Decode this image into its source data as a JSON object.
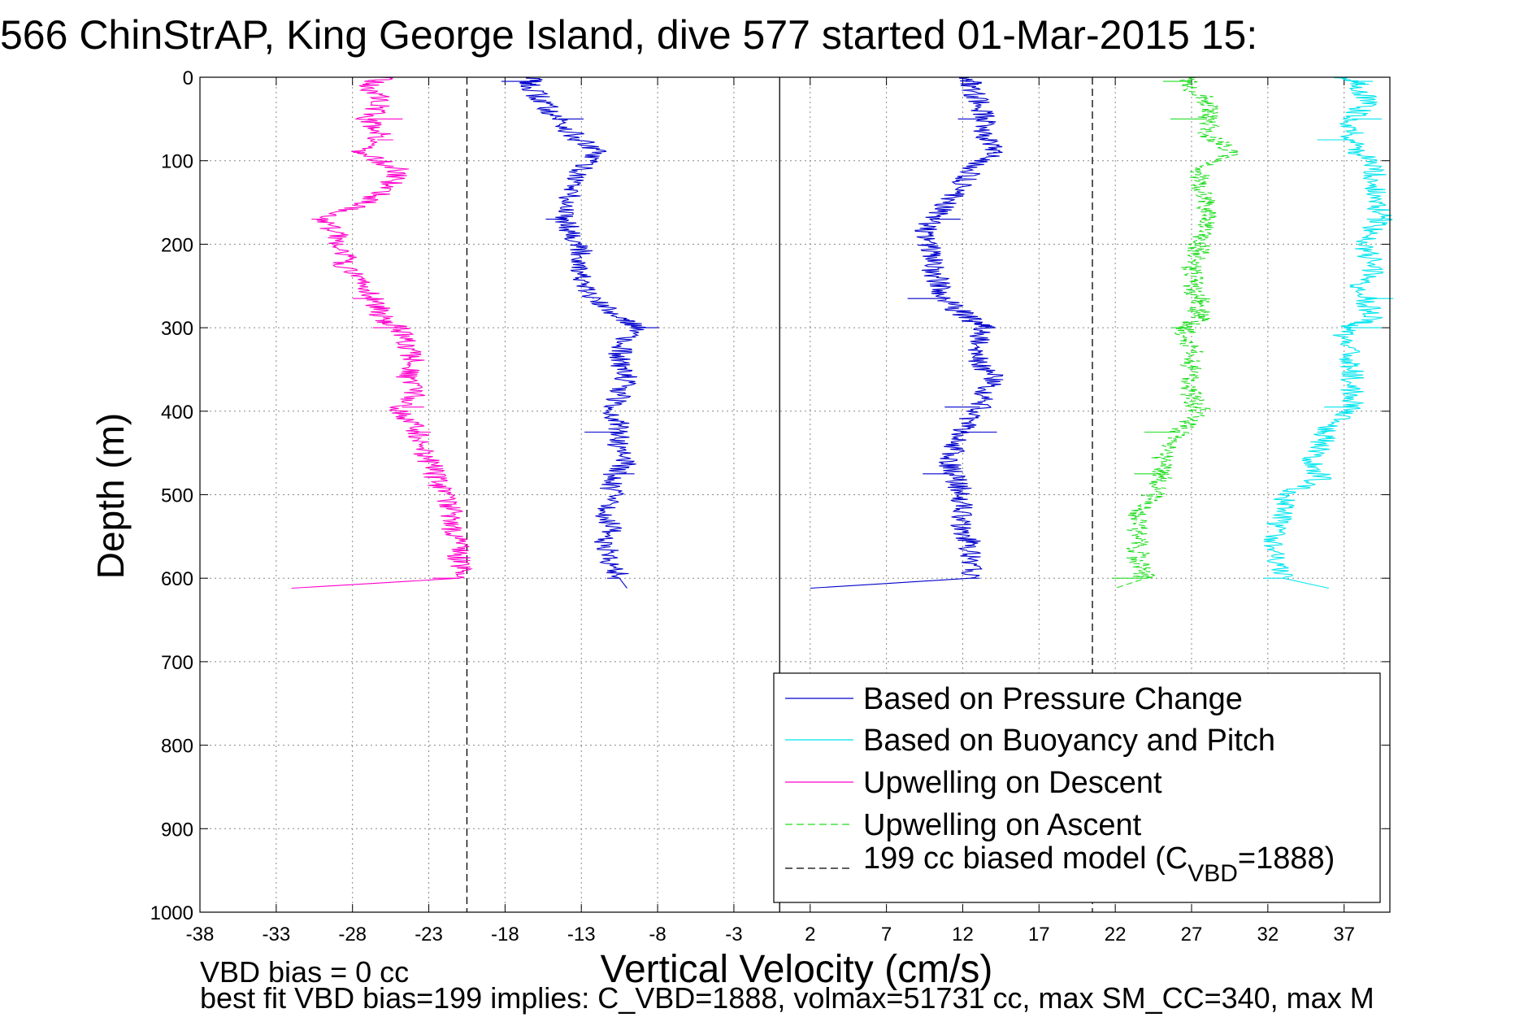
{
  "figure": {
    "title": "566 ChinStrAP, King George Island, dive 577 started 01-Mar-2015 15:",
    "footnote_line1": "VBD bias = 0 cc",
    "footnote_line2": "best fit VBD bias=199 implies: C_VBD=1888, volmax=51731 cc, max SM_CC=340, max M"
  },
  "chart_data": {
    "type": "line",
    "title": "566 ChinStrAP, King George Island, dive 577 started 01-Mar-2015 15:",
    "xlabel": "Vertical Velocity (cm/s)",
    "ylabel": "Depth (m)",
    "xlim": [
      -38,
      40
    ],
    "ylim": [
      0,
      1000
    ],
    "y_reversed": true,
    "x_ticks": [
      -38,
      -33,
      -28,
      -23,
      -18,
      -13,
      -8,
      -3,
      2,
      7,
      12,
      17,
      22,
      27,
      32,
      37
    ],
    "y_ticks": [
      0,
      100,
      200,
      300,
      400,
      500,
      600,
      700,
      800,
      900,
      1000
    ],
    "grid": true,
    "legend_position": "bottom-right",
    "reference_lines": [
      {
        "name": "199 cc biased model",
        "x": -20.5,
        "style": "dashed",
        "color": "#000000"
      },
      {
        "name": "199 cc biased model",
        "x": 20.5,
        "style": "dashed",
        "color": "#000000"
      },
      {
        "name": "zero",
        "x": 0,
        "style": "solid",
        "color": "#000000"
      }
    ],
    "series": [
      {
        "name": "Based on Pressure Change",
        "color": "#0000cc",
        "style": "solid",
        "segments": [
          {
            "depth": [
              0,
              10,
              30,
              50,
              70,
              90,
              110,
              130,
              150,
              170,
              190,
              210,
              230,
              250,
              270,
              290,
              300,
              320,
              340,
              360,
              380,
              400,
              420,
              440,
              460,
              480,
              500,
              520,
              540,
              560,
              580,
              600,
              612
            ],
            "values": [
              -16,
              -16.5,
              -15.5,
              -14.5,
              -13.5,
              -12,
              -13,
              -13.5,
              -14,
              -14,
              -13.5,
              -13,
              -13,
              -13,
              -12,
              -10,
              -9.5,
              -10.5,
              -10.5,
              -10,
              -10.5,
              -11,
              -10.5,
              -10.5,
              -10,
              -11,
              -11,
              -11.5,
              -11,
              -11.5,
              -11,
              -10.5,
              -10
            ]
          },
          {
            "depth": [
              0,
              10,
              30,
              50,
              70,
              90,
              110,
              130,
              150,
              170,
              190,
              210,
              230,
              250,
              270,
              290,
              300,
              320,
              340,
              360,
              380,
              400,
              420,
              440,
              460,
              480,
              500,
              520,
              540,
              560,
              580,
              600,
              612
            ],
            "values": [
              12.5,
              12.5,
              13,
              13.5,
              13.5,
              14,
              12.5,
              12,
              11,
              10,
              9.5,
              10,
              10,
              10.5,
              11,
              12.5,
              13.5,
              13,
              13,
              14,
              13.5,
              13,
              12,
              11.5,
              11,
              11.5,
              12,
              12,
              12,
              12.5,
              12.5,
              12.5,
              2
            ]
          }
        ]
      },
      {
        "name": "Based on Buoyancy and Pitch",
        "color": "#00e5ee",
        "style": "solid",
        "segments": [
          {
            "depth": [
              0,
              10,
              30,
              50,
              70,
              90,
              110,
              130,
              150,
              170,
              190,
              210,
              230,
              250,
              270,
              290,
              300,
              320,
              340,
              360,
              380,
              400,
              420,
              440,
              460,
              480,
              500,
              520,
              540,
              560,
              580,
              600,
              612
            ],
            "values": [
              37,
              38,
              38.5,
              37.5,
              37.5,
              38,
              39,
              39,
              39,
              39.5,
              38.5,
              38.5,
              39,
              38,
              38.5,
              39,
              37,
              37,
              37.5,
              37.5,
              37.5,
              37.5,
              36,
              35.5,
              35,
              35.5,
              33,
              33,
              32.5,
              32.5,
              32.5,
              33,
              36
            ]
          }
        ]
      },
      {
        "name": "Upwelling on Descent",
        "color": "#ff00cc",
        "style": "solid",
        "segments": [
          {
            "depth": [
              0,
              10,
              30,
              50,
              70,
              90,
              110,
              130,
              150,
              170,
              190,
              210,
              230,
              250,
              270,
              290,
              300,
              320,
              340,
              360,
              380,
              400,
              420,
              440,
              460,
              480,
              500,
              520,
              540,
              560,
              580,
              600,
              612
            ],
            "values": [
              -26,
              -27,
              -26,
              -27,
              -26,
              -27.5,
              -25,
              -25.5,
              -27,
              -30,
              -29,
              -28.5,
              -28.5,
              -27,
              -26.5,
              -26,
              -25,
              -24.5,
              -24,
              -24.5,
              -24,
              -25,
              -24,
              -23.5,
              -23,
              -22.5,
              -22,
              -21.5,
              -21.5,
              -21,
              -21,
              -21,
              -32
            ]
          }
        ]
      },
      {
        "name": "Upwelling on Ascent",
        "color": "#22dd22",
        "style": "dashed",
        "segments": [
          {
            "depth": [
              0,
              10,
              30,
              50,
              70,
              90,
              110,
              130,
              150,
              170,
              190,
              210,
              230,
              250,
              270,
              290,
              300,
              320,
              340,
              360,
              380,
              400,
              420,
              440,
              460,
              480,
              500,
              520,
              540,
              560,
              580,
              600,
              612
            ],
            "values": [
              27,
              27,
              28,
              28,
              28,
              30,
              27.5,
              27.5,
              28,
              28,
              27.5,
              27.5,
              27,
              27,
              27.5,
              27.5,
              26.5,
              27,
              27,
              27,
              27,
              27.5,
              26.5,
              25.5,
              25,
              25,
              24.5,
              23.5,
              23.5,
              23.5,
              23.5,
              24,
              22
            ]
          }
        ]
      },
      {
        "name": "199 cc biased model",
        "color": "#000000",
        "style": "dashed",
        "segments": []
      }
    ],
    "legend": [
      {
        "label": "Based on Pressure Change",
        "color": "#0000cc",
        "style": "solid"
      },
      {
        "label": "Based on Buoyancy and Pitch",
        "color": "#00e5ee",
        "style": "solid"
      },
      {
        "label": "Upwelling on Descent",
        "color": "#ff00cc",
        "style": "solid"
      },
      {
        "label": "Upwelling on Ascent",
        "color": "#22dd22",
        "style": "dashed"
      },
      {
        "label_main": "199 cc biased model (C",
        "label_sub": "VBD",
        "label_tail": "=1888)",
        "color": "#000000",
        "style": "dashed"
      }
    ]
  }
}
